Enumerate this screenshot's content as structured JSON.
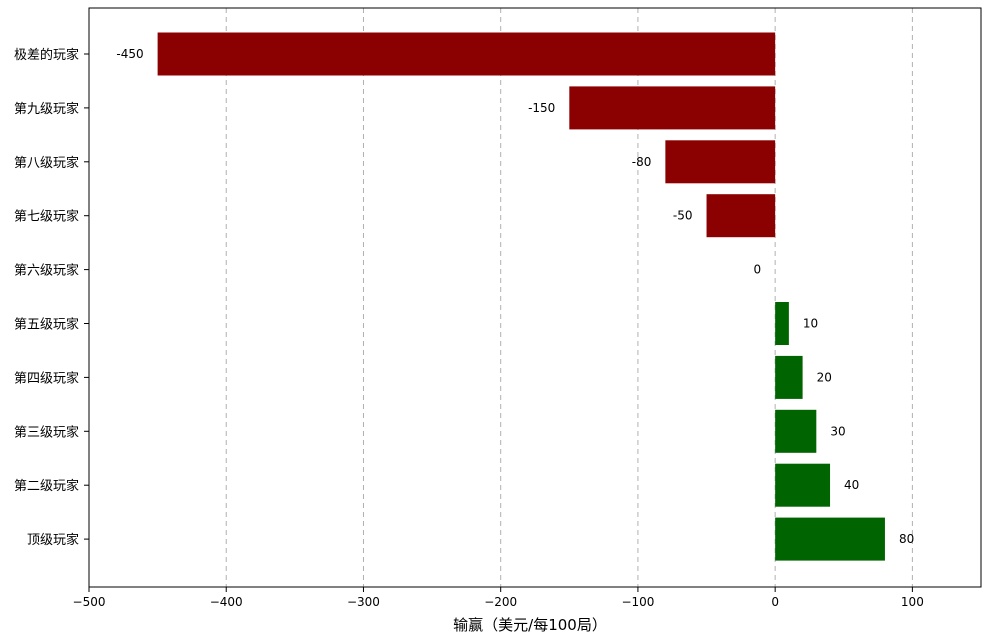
{
  "chart_data": {
    "type": "bar",
    "orientation": "horizontal",
    "categories": [
      "极差的玩家",
      "第九级玩家",
      "第八级玩家",
      "第七级玩家",
      "第六级玩家",
      "第五级玩家",
      "第四级玩家",
      "第三级玩家",
      "第二级玩家",
      "顶级玩家"
    ],
    "values": [
      -450,
      -150,
      -80,
      -50,
      0,
      10,
      20,
      30,
      40,
      80
    ],
    "value_labels": [
      "-450",
      "-150",
      "-80",
      "-50",
      "0",
      "10",
      "20",
      "30",
      "40",
      "80"
    ],
    "xlabel": "输赢（美元/每100局）",
    "ylabel": "",
    "title": "",
    "xlim": [
      -500,
      150
    ],
    "xticks": [
      -500,
      -400,
      -300,
      -200,
      -100,
      0,
      100
    ],
    "xtick_labels": [
      "−500",
      "−400",
      "−300",
      "−200",
      "−100",
      "0",
      "100"
    ],
    "grid": "x",
    "colors": {
      "negative": "#8b0000",
      "positive": "#006400"
    }
  }
}
